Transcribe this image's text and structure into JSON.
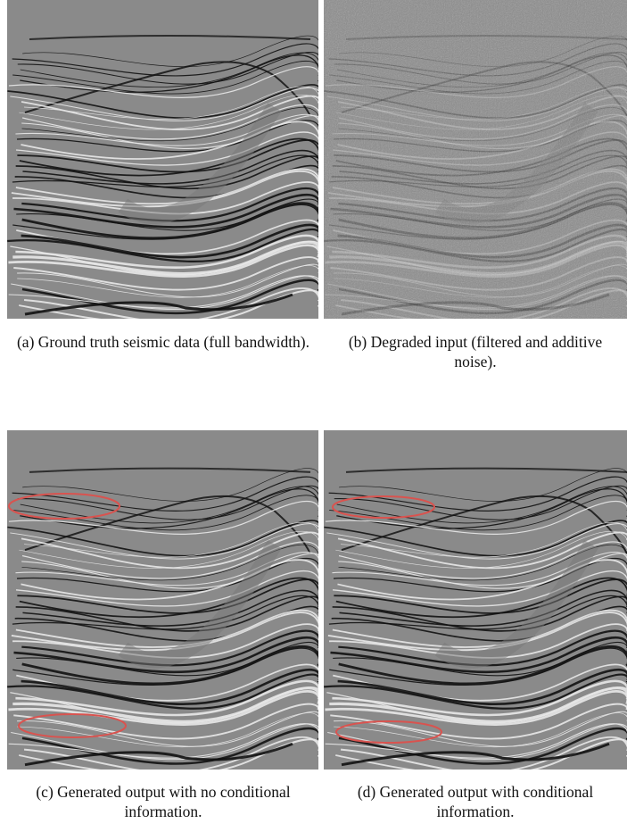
{
  "figures": [
    {
      "caption": "(a) Ground truth seismic data (full bandwidth)."
    },
    {
      "caption": "(b) Degraded input (filtered and additive noise)."
    },
    {
      "caption": "(c) Generated output with no conditional information."
    },
    {
      "caption": "(d) Generated output with conditional information."
    }
  ]
}
